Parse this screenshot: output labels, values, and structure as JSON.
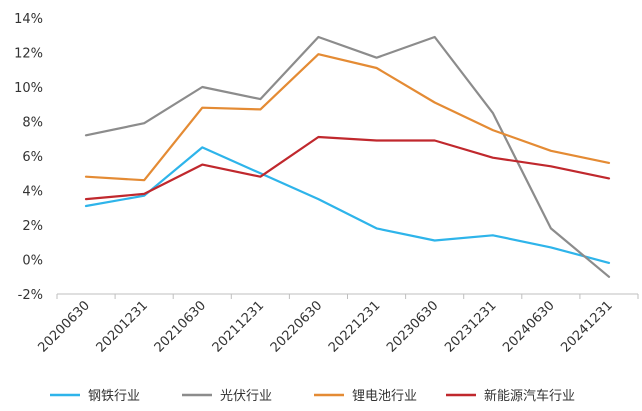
{
  "chart_data": {
    "type": "line",
    "title": "",
    "xlabel": "",
    "ylabel": "",
    "x": [
      "20200630",
      "20201231",
      "20210630",
      "20211231",
      "20220630",
      "20221231",
      "20230630",
      "20231231",
      "20240630",
      "20241231"
    ],
    "ylim": [
      -2,
      14
    ],
    "ytick_step": 2,
    "ytick_labels": [
      "-2%",
      "0%",
      "2%",
      "4%",
      "6%",
      "8%",
      "10%",
      "12%",
      "14%"
    ],
    "grid": false,
    "legend_position": "bottom",
    "series": [
      {
        "name": "钢铁行业",
        "color": "#2EB4EA",
        "values": [
          3.1,
          3.7,
          6.5,
          5.0,
          3.5,
          1.8,
          1.1,
          1.4,
          0.7,
          -0.2
        ]
      },
      {
        "name": "光伏行业",
        "color": "#8C8C8C",
        "values": [
          7.2,
          7.9,
          10.0,
          9.3,
          12.9,
          11.7,
          12.9,
          8.5,
          1.8,
          -1.0
        ]
      },
      {
        "name": "锂电池行业",
        "color": "#E48B34",
        "values": [
          4.8,
          4.6,
          8.8,
          8.7,
          11.9,
          11.1,
          9.1,
          7.5,
          6.3,
          5.6
        ]
      },
      {
        "name": "新能源汽车行业",
        "color": "#C0282D",
        "values": [
          3.5,
          3.8,
          5.5,
          4.8,
          7.1,
          6.9,
          6.9,
          5.9,
          5.4,
          4.7
        ]
      }
    ]
  }
}
